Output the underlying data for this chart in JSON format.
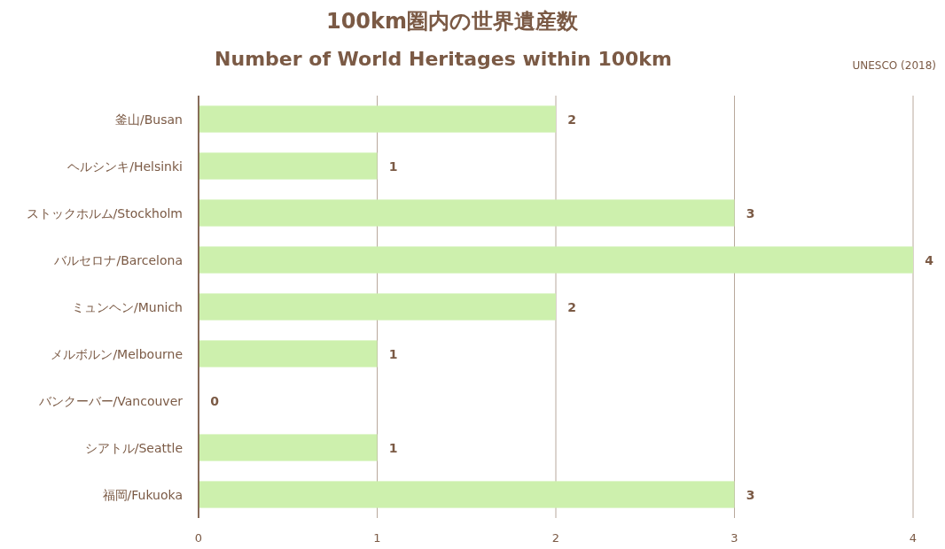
{
  "chart_data": {
    "type": "bar",
    "orientation": "horizontal",
    "title": "100km圏内の世界遺産数",
    "subtitle": "Number of World Heritages within 100km",
    "annotations": [
      "UNESCO (2018)"
    ],
    "categories": [
      "釜山/Busan",
      "ヘルシンキ/Helsinki",
      "ストックホルム/Stockholm",
      "バルセロナ/Barcelona",
      "ミュンヘン/Munich",
      "メルボルン/Melbourne",
      "バンクーバー/Vancouver",
      "シアトル/Seattle",
      "福岡/Fukuoka"
    ],
    "values": [
      2,
      1,
      3,
      4,
      2,
      1,
      0,
      1,
      3
    ],
    "color": "#cdf0ad",
    "xlim": [
      0,
      4
    ],
    "xticks": [
      0,
      1,
      2,
      3,
      4
    ],
    "grid": "x",
    "data_labels": true
  }
}
